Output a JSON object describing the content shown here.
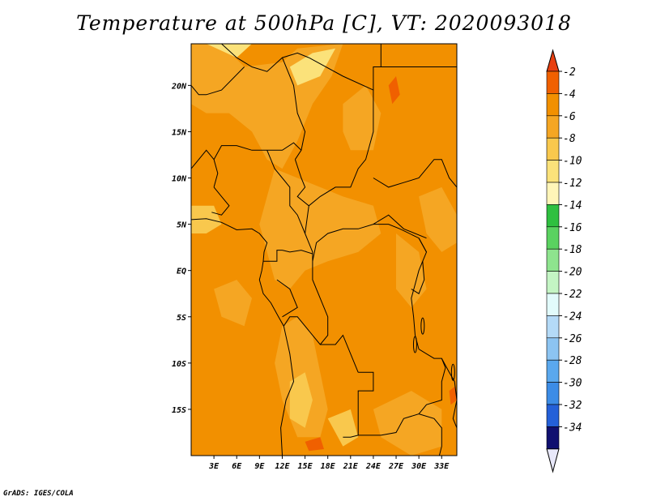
{
  "title": "Temperature at 500hPa [C], VT: 2020093018",
  "credit": "GrADS: IGES/COLA",
  "map": {
    "lon_range": [
      0,
      35
    ],
    "lat_range": [
      -20,
      24.5
    ],
    "lat_ticks": [
      {
        "value": 20,
        "label": "20N"
      },
      {
        "value": 15,
        "label": "15N"
      },
      {
        "value": 10,
        "label": "10N"
      },
      {
        "value": 5,
        "label": "5N"
      },
      {
        "value": 0,
        "label": "EQ"
      },
      {
        "value": -5,
        "label": "5S"
      },
      {
        "value": -10,
        "label": "10S"
      },
      {
        "value": -15,
        "label": "15S"
      }
    ],
    "lon_ticks": [
      {
        "value": 3,
        "label": "3E"
      },
      {
        "value": 6,
        "label": "6E"
      },
      {
        "value": 9,
        "label": "9E"
      },
      {
        "value": 12,
        "label": "12E"
      },
      {
        "value": 15,
        "label": "15E"
      },
      {
        "value": 18,
        "label": "18E"
      },
      {
        "value": 21,
        "label": "21E"
      },
      {
        "value": 24,
        "label": "24E"
      },
      {
        "value": 27,
        "label": "27E"
      },
      {
        "value": 30,
        "label": "30E"
      },
      {
        "value": 33,
        "label": "33E"
      }
    ]
  },
  "colorbar": {
    "levels": [
      {
        "label": "-2",
        "color": "#f06000"
      },
      {
        "label": "-4",
        "color": "#f29000"
      },
      {
        "label": "-6",
        "color": "#f5a623"
      },
      {
        "label": "-8",
        "color": "#f9c84d"
      },
      {
        "label": "-10",
        "color": "#fbe27a"
      },
      {
        "label": "-12",
        "color": "#fff5b8"
      },
      {
        "label": "-14",
        "color": "#2fc040"
      },
      {
        "label": "-16",
        "color": "#5ad260"
      },
      {
        "label": "-18",
        "color": "#8ee48e"
      },
      {
        "label": "-20",
        "color": "#c4f5c4"
      },
      {
        "label": "-22",
        "color": "#e2fbfb"
      },
      {
        "label": "-24",
        "color": "#b4daf7"
      },
      {
        "label": "-26",
        "color": "#8cc4f2"
      },
      {
        "label": "-28",
        "color": "#5aa8ee"
      },
      {
        "label": "-30",
        "color": "#3c8ce6"
      },
      {
        "label": "-32",
        "color": "#2460d8"
      },
      {
        "label": "-34",
        "color": "#1c40b8"
      }
    ],
    "top_color": "#e84010",
    "bottom_color": "#e8e8fa",
    "extra_fill_color": "#101070"
  },
  "field_colors": {
    "base": "#f29000",
    "light": "#f5a623",
    "lighter": "#f9c84d",
    "lightest": "#fbe27a",
    "hot": "#f06000"
  }
}
